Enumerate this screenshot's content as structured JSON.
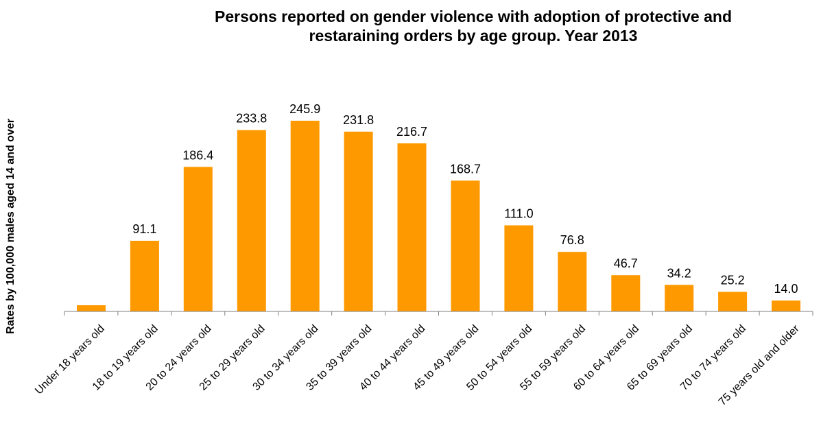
{
  "chart_data": {
    "type": "bar",
    "title": "Persons reported on gender violence with adoption of protective and\nrestaraining orders by age group. Year 2013",
    "xlabel": "",
    "ylabel": "Rates by 100,000 males aged 14 and over",
    "categories": [
      "Under 18 years old",
      "18 to 19 years old",
      "20 to 24 years old",
      "25 to 29 years old",
      "30 to 34 years old",
      "35 to 39 years old",
      "40 to 44 years old",
      "45 to 49 years old",
      "50 to 54 years old",
      "55 to 59 years old",
      "60 to 64 years old",
      "65 to 69 years old",
      "70 to 74 years old",
      "75 years old and older"
    ],
    "values": [
      8.0,
      91.1,
      186.4,
      233.8,
      245.9,
      231.8,
      216.7,
      168.7,
      111.0,
      76.8,
      46.7,
      34.2,
      25.2,
      14.0
    ],
    "labels": [
      "",
      "91.1",
      "186.4",
      "233.8",
      "245.9",
      "231.8",
      "216.7",
      "168.7",
      "111.0",
      "76.8",
      "46.7",
      "34.2",
      "25.2",
      "14.0"
    ],
    "ylim": [
      0,
      245.9
    ],
    "grid": false,
    "legend": "none",
    "bar_color": "#FF9900"
  }
}
